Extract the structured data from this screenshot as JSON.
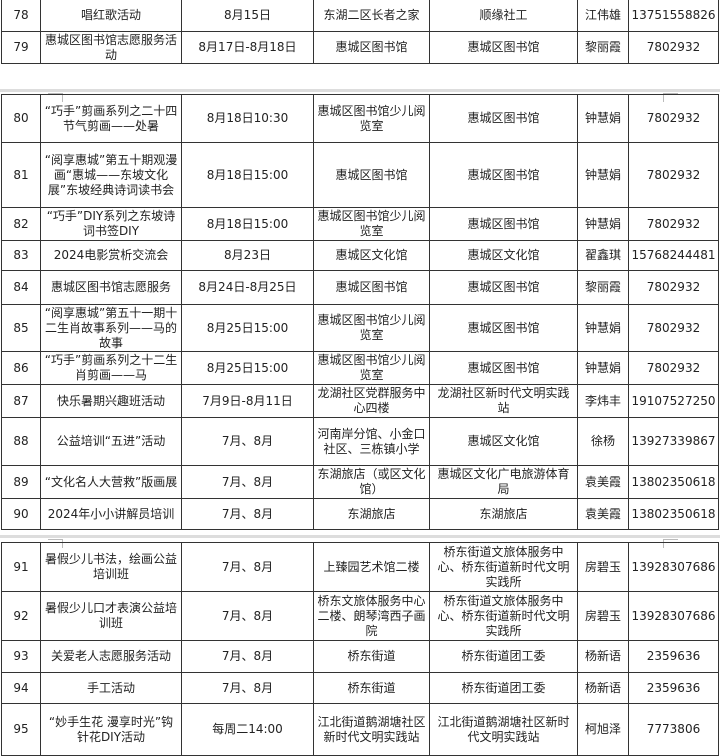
{
  "sections": [
    {
      "rows": [
        {
          "no": "78",
          "activity": "唱红歌活动",
          "time": "8月15日",
          "venue": "东湖二区长者之家",
          "organizer": "顺缘社工",
          "contact": "江伟雄",
          "phone": "13751558826"
        },
        {
          "no": "79",
          "activity": "惠城区图书馆志愿服务活动",
          "time": "8月17日-8月18日",
          "venue": "惠城区图书馆",
          "organizer": "惠城区图书馆",
          "contact": "黎丽霞",
          "phone": "7802932"
        }
      ]
    },
    {
      "rows": [
        {
          "no": "80",
          "activity": "“巧手”剪画系列之二十四节气剪画——处暑",
          "time": "8月18日10:30",
          "venue": "惠城区图书馆少儿阅览室",
          "organizer": "惠城区图书馆",
          "contact": "钟慧娟",
          "phone": "7802932"
        },
        {
          "no": "81",
          "activity": "“阅享惠城”第五十期观漫画“惠城——东坡文化展”东坡经典诗词读书会",
          "time": "8月18日15:00",
          "venue": "惠城区图书馆",
          "organizer": "惠城区图书馆",
          "contact": "钟慧娟",
          "phone": "7802932"
        },
        {
          "no": "82",
          "activity": "“巧手”DIY系列之东坡诗词书签DIY",
          "time": "8月18日15:00",
          "venue": "惠城区图书馆少儿阅览室",
          "organizer": "惠城区图书馆",
          "contact": "钟慧娟",
          "phone": "7802932"
        },
        {
          "no": "83",
          "activity": "2024电影赏析交流会",
          "time": "8月23日",
          "venue": "惠城区文化馆",
          "organizer": "惠城区文化馆",
          "contact": "翟鑫琪",
          "phone": "15768244481"
        },
        {
          "no": "84",
          "activity": "惠城区图书馆志愿服务",
          "time": "8月24日-8月25日",
          "venue": "惠城区图书馆",
          "organizer": "惠城区图书馆",
          "contact": "黎丽霞",
          "phone": "7802932"
        },
        {
          "no": "85",
          "activity": "“阅享惠城”第五十一期十二生肖故事系列——马的故事",
          "time": "8月25日15:00",
          "venue": "惠城区图书馆少儿阅览室",
          "organizer": "惠城区图书馆",
          "contact": "钟慧娟",
          "phone": "7802932"
        },
        {
          "no": "86",
          "activity": "“巧手”剪画系列之十二生肖剪画——马",
          "time": "8月25日15:00",
          "venue": "惠城区图书馆少儿阅览室",
          "organizer": "惠城区图书馆",
          "contact": "钟慧娟",
          "phone": "7802932"
        },
        {
          "no": "87",
          "activity": "快乐暑期兴趣班活动",
          "time": "7月9日-8月11日",
          "venue": "龙湖社区党群服务中心四楼",
          "organizer": "龙湖社区新时代文明实践站",
          "contact": "李炜丰",
          "phone": "19107527250"
        },
        {
          "no": "88",
          "activity": "公益培训“五进”活动",
          "time": "7月、8月",
          "venue": "河南岸分馆、小金口社区、三栋镇小学",
          "organizer": "惠城区文化馆",
          "contact": "徐杨",
          "phone": "13927339867"
        },
        {
          "no": "89",
          "activity": "“文化名人大营救”版画展",
          "time": "7月、8月",
          "venue": "东湖旅店（或区文化馆）",
          "organizer": "惠城区文化广电旅游体育局",
          "contact": "袁美霞",
          "phone": "13802350618"
        },
        {
          "no": "90",
          "activity": "2024年小小讲解员培训",
          "time": "7月、8月",
          "venue": "东湖旅店",
          "organizer": "东湖旅店",
          "contact": "袁美霞",
          "phone": "13802350618"
        }
      ]
    },
    {
      "rows": [
        {
          "no": "91",
          "activity": "暑假少儿书法，绘画公益培训班",
          "time": "7月、8月",
          "venue": "上臻园艺术馆二楼",
          "organizer": "桥东街道文旅体服务中心、桥东街道新时代文明实践所",
          "contact": "房碧玉",
          "phone": "13928307686"
        },
        {
          "no": "92",
          "activity": "暑假少儿口才表演公益培训班",
          "time": "7月、8月",
          "venue": "桥东文旅体服务中心二楼、朗琴湾西子画院",
          "organizer": "桥东街道文旅体服务中心、桥东街道新时代文明实践所",
          "contact": "房碧玉",
          "phone": "13928307686"
        },
        {
          "no": "93",
          "activity": "关爱老人志愿服务活动",
          "time": "7月、8月",
          "venue": "桥东街道",
          "organizer": "桥东街道团工委",
          "contact": "杨新语",
          "phone": "2359636"
        },
        {
          "no": "94",
          "activity": "手工活动",
          "time": "7月、8月",
          "venue": "桥东街道",
          "organizer": "桥东街道团工委",
          "contact": "杨新语",
          "phone": "2359636"
        },
        {
          "no": "95",
          "activity": "“妙手生花 漫享时光”钩针花DIY活动",
          "time": "每周二14:00",
          "venue": "江北街道鹅湖塘社区新时代文明实践站",
          "organizer": "江北街道鹅湖塘社区新时代文明实践站",
          "contact": "柯旭泽",
          "phone": "7773806"
        }
      ]
    }
  ]
}
